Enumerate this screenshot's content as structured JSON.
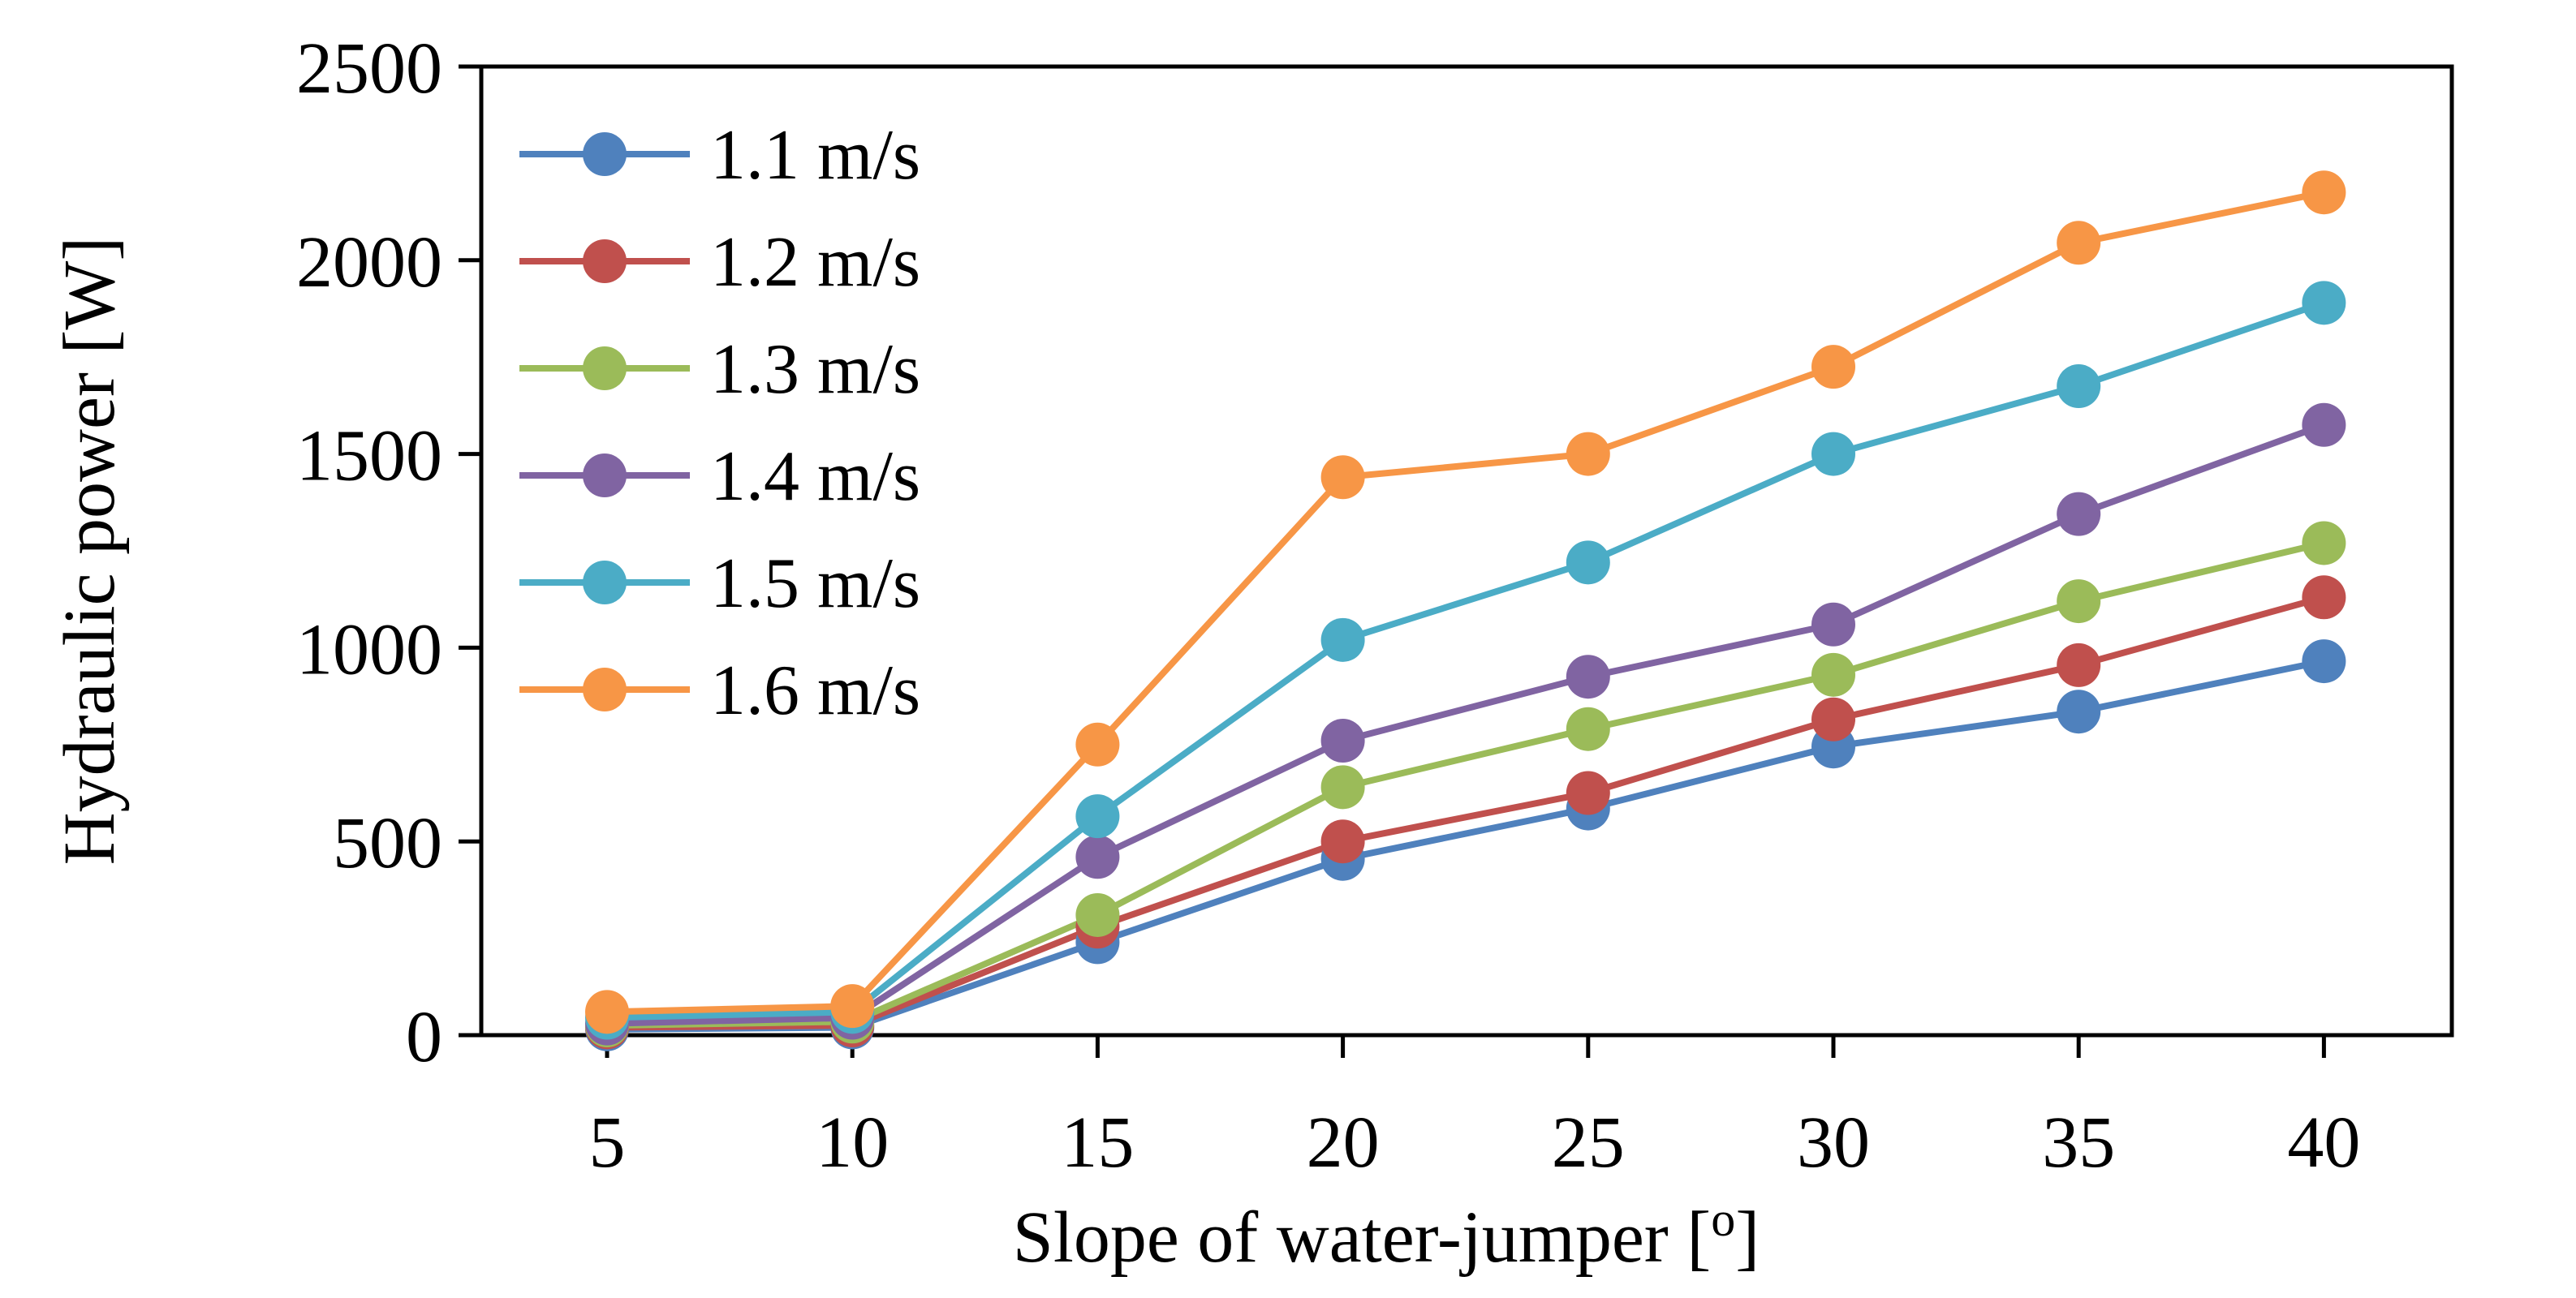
{
  "chart_data": {
    "type": "line",
    "title": "",
    "xlabel": "Slope of water-jumper [",
    "xlabel_sup": "o",
    "xlabel_end": "]",
    "ylabel": "Hydraulic power [W]",
    "x": [
      5,
      10,
      15,
      20,
      25,
      30,
      35,
      40
    ],
    "x_tick_labels": [
      "5",
      "10",
      "15",
      "20",
      "25",
      "30",
      "35",
      "40"
    ],
    "y_tick_labels": [
      "0",
      "500",
      "1000",
      "1500",
      "2000",
      "2500"
    ],
    "y_ticks": [
      0,
      500,
      1000,
      1500,
      2000,
      2500
    ],
    "ylim": [
      0,
      2500
    ],
    "grid": false,
    "legend_position": "top-left",
    "series": [
      {
        "name": "1.1 m/s",
        "color": "#4F81BD",
        "values": [
          15,
          20,
          240,
          455,
          585,
          745,
          835,
          965
        ]
      },
      {
        "name": "1.2 m/s",
        "color": "#C0504D",
        "values": [
          20,
          25,
          280,
          500,
          625,
          815,
          955,
          1130
        ]
      },
      {
        "name": "1.3 m/s",
        "color": "#9BBB59",
        "values": [
          25,
          35,
          310,
          640,
          790,
          930,
          1120,
          1270
        ]
      },
      {
        "name": "1.4 m/s",
        "color": "#8064A2",
        "values": [
          30,
          45,
          460,
          760,
          925,
          1060,
          1345,
          1575
        ]
      },
      {
        "name": "1.5 m/s",
        "color": "#4BACC6",
        "values": [
          45,
          60,
          565,
          1020,
          1220,
          1500,
          1675,
          1890
        ]
      },
      {
        "name": "1.6 m/s",
        "color": "#F79646",
        "values": [
          60,
          75,
          750,
          1440,
          1500,
          1725,
          2045,
          2175
        ]
      }
    ]
  }
}
